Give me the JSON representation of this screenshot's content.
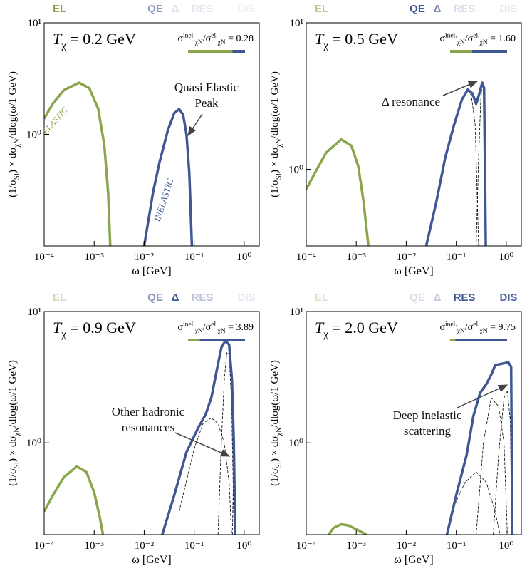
{
  "chart_data": [
    {
      "type": "line",
      "header": [
        {
          "label": "EL",
          "color": "#8aa64c",
          "opacity": 1
        },
        {
          "label": "QE",
          "color": "#3f5793",
          "opacity": 0.6
        },
        {
          "label": "Δ",
          "color": "#3f5793",
          "opacity": 0.2
        },
        {
          "label": "RES",
          "color": "#3f5793",
          "opacity": 0.15
        },
        {
          "label": "DIS",
          "color": "#3f5793",
          "opacity": 0.1
        }
      ],
      "title": [
        "T",
        "χ",
        " = 0.2 GeV"
      ],
      "ratio_text": [
        "σ",
        "inel.",
        "χN",
        "/σ",
        "el.",
        "χN",
        " = 0.28"
      ],
      "ratio": 0.28,
      "xlabel": "ω [GeV]",
      "ylabel": [
        "(1/σ",
        "SI",
        ") × dσ",
        "χN",
        "/dlog(ω/1 GeV)"
      ],
      "xscale": "log",
      "yscale": "log",
      "xlim": [
        0.0001,
        2
      ],
      "ylim": [
        0.1,
        10
      ],
      "xticks": [
        {
          "value": 0.0001,
          "label": "10⁻⁴"
        },
        {
          "value": 0.001,
          "label": "10⁻³"
        },
        {
          "value": 0.01,
          "label": "10⁻²"
        },
        {
          "value": 0.1,
          "label": "10⁻¹"
        },
        {
          "value": 1,
          "label": "10⁰"
        }
      ],
      "yticks": [
        {
          "value": 1,
          "label": "10⁰"
        },
        {
          "value": 10,
          "label": "10¹"
        }
      ],
      "series": [
        {
          "color": "#8aa64c",
          "style": "solid",
          "x": [
            0.0001,
            0.00015,
            0.00025,
            0.0005,
            0.0008,
            0.0012,
            0.0016,
            0.0019,
            0.0021
          ],
          "values": [
            1.38,
            1.9,
            2.5,
            2.9,
            2.6,
            1.7,
            0.8,
            0.3,
            0.1
          ]
        },
        {
          "color": "#3f5793",
          "style": "solid",
          "x": [
            0.01,
            0.015,
            0.02,
            0.03,
            0.04,
            0.05,
            0.06,
            0.07,
            0.08,
            0.09
          ],
          "values": [
            0.1,
            0.3,
            0.55,
            1.1,
            1.55,
            1.68,
            1.5,
            1.0,
            0.45,
            0.1
          ]
        }
      ],
      "annotations": [
        "Quasi Elastic",
        "Peak",
        "ELASTIC",
        "INELASTIC"
      ]
    },
    {
      "type": "line",
      "header": [
        {
          "label": "EL",
          "color": "#8aa64c",
          "opacity": 0.6
        },
        {
          "label": "QE",
          "color": "#3f5793",
          "opacity": 1
        },
        {
          "label": "Δ",
          "color": "#3f5793",
          "opacity": 0.7
        },
        {
          "label": "RES",
          "color": "#3f5793",
          "opacity": 0.2
        },
        {
          "label": "DIS",
          "color": "#3f5793",
          "opacity": 0.15
        }
      ],
      "title": [
        "T",
        "χ",
        " = 0.5 GeV"
      ],
      "ratio_text": [
        "σ",
        "inel.",
        "χN",
        "/σ",
        "el.",
        "χN",
        " = 1.60"
      ],
      "ratio": 1.6,
      "xlabel": "ω [GeV]",
      "ylabel": [
        "(1/σ",
        "SI",
        ") × dσ",
        "χN",
        "/dlog(ω/1 GeV)"
      ],
      "xscale": "log",
      "yscale": "log",
      "xlim": [
        0.0001,
        2
      ],
      "ylim": [
        0.3,
        10
      ],
      "xticks": [
        {
          "value": 0.0001,
          "label": "10⁻⁴"
        },
        {
          "value": 0.001,
          "label": "10⁻³"
        },
        {
          "value": 0.01,
          "label": "10⁻²"
        },
        {
          "value": 0.1,
          "label": "10⁻¹"
        },
        {
          "value": 1,
          "label": "10⁰"
        }
      ],
      "yticks": [
        {
          "value": 1,
          "label": "10⁰"
        },
        {
          "value": 10,
          "label": "10¹"
        }
      ],
      "series": [
        {
          "color": "#8aa64c",
          "style": "solid",
          "x": [
            0.0001,
            0.00015,
            0.00025,
            0.0005,
            0.0008,
            0.0011,
            0.0014,
            0.00175
          ],
          "values": [
            0.73,
            0.95,
            1.3,
            1.6,
            1.45,
            1.05,
            0.6,
            0.3
          ]
        },
        {
          "color": "#000000",
          "style": "dashed",
          "x": [
            0.17,
            0.2,
            0.24,
            0.28
          ],
          "values": [
            3.45,
            3.2,
            2.0,
            0.3
          ]
        },
        {
          "color": "#000000",
          "style": "dashed",
          "x": [
            0.25,
            0.28,
            0.31,
            0.33,
            0.36,
            0.39
          ],
          "values": [
            0.3,
            1.2,
            3.0,
            3.85,
            3.6,
            0.3
          ]
        },
        {
          "color": "#3f5793",
          "style": "solid",
          "x": [
            0.025,
            0.04,
            0.06,
            0.09,
            0.13,
            0.17,
            0.21,
            0.25,
            0.29,
            0.33,
            0.36,
            0.39
          ],
          "values": [
            0.3,
            0.6,
            1.2,
            2.0,
            3.0,
            3.5,
            3.3,
            2.8,
            3.3,
            3.9,
            3.6,
            0.3
          ]
        }
      ],
      "annotations": [
        "Δ resonance"
      ]
    },
    {
      "type": "line",
      "header": [
        {
          "label": "EL",
          "color": "#8aa64c",
          "opacity": 0.4
        },
        {
          "label": "QE",
          "color": "#3f5793",
          "opacity": 0.6
        },
        {
          "label": "Δ",
          "color": "#3f5793",
          "opacity": 1
        },
        {
          "label": "RES",
          "color": "#3f5793",
          "opacity": 0.35
        },
        {
          "label": "DIS",
          "color": "#3f5793",
          "opacity": 0.15
        }
      ],
      "title": [
        "T",
        "χ",
        " = 0.9 GeV"
      ],
      "ratio_text": [
        "σ",
        "inel.",
        "χN",
        "/σ",
        "el.",
        "χN",
        " = 3.89"
      ],
      "ratio": 3.89,
      "xlabel": "ω [GeV]",
      "ylabel": [
        "(1/σ",
        "SI",
        ") × dσ",
        "χN",
        "/dlog(ω/1 GeV)"
      ],
      "xscale": "log",
      "yscale": "log",
      "xlim": [
        0.0001,
        2
      ],
      "ylim": [
        0.2,
        10
      ],
      "xticks": [
        {
          "value": 0.0001,
          "label": "10⁻⁴"
        },
        {
          "value": 0.001,
          "label": "10⁻³"
        },
        {
          "value": 0.01,
          "label": "10⁻²"
        },
        {
          "value": 0.1,
          "label": "10⁻¹"
        },
        {
          "value": 1,
          "label": "10⁰"
        }
      ],
      "yticks": [
        {
          "value": 1,
          "label": "10⁰"
        },
        {
          "value": 10,
          "label": "10¹"
        }
      ],
      "series": [
        {
          "color": "#8aa64c",
          "style": "solid",
          "x": [
            0.0001,
            0.00015,
            0.00025,
            0.00045,
            0.0007,
            0.001,
            0.0013,
            0.0015
          ],
          "values": [
            0.3,
            0.4,
            0.55,
            0.66,
            0.6,
            0.42,
            0.27,
            0.2
          ]
        },
        {
          "color": "#000000",
          "style": "dashed",
          "x": [
            0.05,
            0.1,
            0.15,
            0.22,
            0.3,
            0.4,
            0.5,
            0.56
          ],
          "values": [
            0.3,
            0.9,
            1.4,
            1.55,
            1.4,
            1.0,
            0.5,
            0.2
          ]
        },
        {
          "color": "#000000",
          "style": "dashed",
          "x": [
            0.3,
            0.35,
            0.4,
            0.45,
            0.5,
            0.56,
            0.6,
            0.63
          ],
          "values": [
            0.2,
            1.0,
            3.0,
            4.9,
            4.7,
            2.0,
            0.5,
            0.2
          ]
        },
        {
          "color": "#000000",
          "style": "dashed",
          "x": [
            0.58,
            0.62,
            0.65
          ],
          "values": [
            0.2,
            0.8,
            0.2
          ]
        },
        {
          "color": "#3f5793",
          "style": "solid",
          "x": [
            0.023,
            0.04,
            0.07,
            0.12,
            0.17,
            0.22,
            0.28,
            0.35,
            0.42,
            0.5,
            0.57,
            0.62,
            0.66
          ],
          "values": [
            0.2,
            0.4,
            0.85,
            1.3,
            1.65,
            2.2,
            3.5,
            5.3,
            6.0,
            5.6,
            3.0,
            1.0,
            0.2
          ]
        }
      ],
      "annotations": [
        "Other hadronic",
        "resonances"
      ]
    },
    {
      "type": "line",
      "header": [
        {
          "label": "EL",
          "color": "#8aa64c",
          "opacity": 0.3
        },
        {
          "label": "QE",
          "color": "#3f5793",
          "opacity": 0.2
        },
        {
          "label": "Δ",
          "color": "#3f5793",
          "opacity": 0.3
        },
        {
          "label": "RES",
          "color": "#3f5793",
          "opacity": 1
        },
        {
          "label": "DIS",
          "color": "#3f5793",
          "opacity": 0.9
        }
      ],
      "title": [
        "T",
        "χ",
        " = 2.0 GeV"
      ],
      "ratio_text": [
        "σ",
        "inel.",
        "χN",
        "/σ",
        "el.",
        "χN",
        " = 9.75"
      ],
      "ratio": 9.75,
      "xlabel": "ω [GeV]",
      "ylabel": [
        "(1/σ",
        "SI",
        ") × dσ",
        "χN",
        "/dlog(ω/1 GeV)"
      ],
      "xscale": "log",
      "yscale": "log",
      "xlim": [
        0.0001,
        2
      ],
      "ylim": [
        0.2,
        10
      ],
      "xticks": [
        {
          "value": 0.0001,
          "label": "10⁻⁴"
        },
        {
          "value": 0.001,
          "label": "10⁻³"
        },
        {
          "value": 0.01,
          "label": "10⁻²"
        },
        {
          "value": 0.1,
          "label": "10⁻¹"
        },
        {
          "value": 1,
          "label": "10⁰"
        }
      ],
      "yticks": [
        {
          "value": 1,
          "label": "10⁰"
        },
        {
          "value": 10,
          "label": "10¹"
        }
      ],
      "series": [
        {
          "color": "#8aa64c",
          "style": "solid",
          "x": [
            0.00028,
            0.00035,
            0.0005,
            0.0007,
            0.001,
            0.0016
          ],
          "values": [
            0.2,
            0.225,
            0.24,
            0.235,
            0.22,
            0.2
          ]
        },
        {
          "color": "#000000",
          "style": "dashed",
          "x": [
            0.08,
            0.15,
            0.25,
            0.4,
            0.6,
            0.75
          ],
          "values": [
            0.3,
            0.5,
            0.6,
            0.5,
            0.3,
            0.2
          ]
        },
        {
          "color": "#000000",
          "style": "dashed",
          "x": [
            0.25,
            0.35,
            0.5,
            0.7,
            0.9,
            1.05
          ],
          "values": [
            0.2,
            1.0,
            2.2,
            1.9,
            1.0,
            0.2
          ]
        },
        {
          "color": "#000000",
          "style": "dashed",
          "x": [
            0.55,
            0.7,
            0.9,
            1.05,
            1.2,
            1.3
          ],
          "values": [
            0.2,
            0.8,
            2.2,
            2.5,
            1.5,
            0.2
          ]
        },
        {
          "color": "#3f5793",
          "style": "solid",
          "x": [
            0.065,
            0.1,
            0.16,
            0.22,
            0.3,
            0.4,
            0.5,
            0.6,
            0.8,
            1.1,
            1.25,
            1.32
          ],
          "values": [
            0.2,
            0.4,
            0.8,
            1.6,
            2.4,
            2.8,
            3.3,
            3.9,
            4.0,
            4.1,
            3.8,
            0.2
          ]
        }
      ],
      "annotations": [
        "Deep inelastic",
        "scattering"
      ]
    }
  ]
}
